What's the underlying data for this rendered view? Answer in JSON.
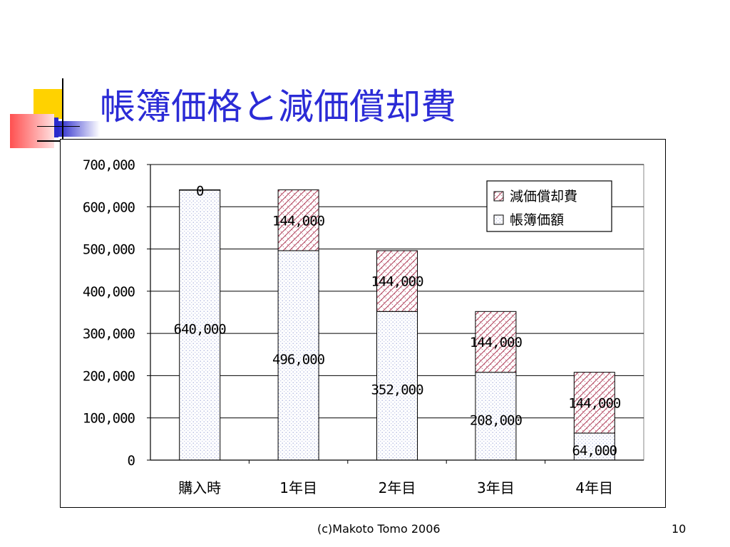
{
  "slide": {
    "title": "帳簿価格と減価償却費",
    "footer": "(c)Makoto Tomo 2006",
    "page_number": "10"
  },
  "colors": {
    "title": "#2b2bd6",
    "deco_yellow": "#ffd200",
    "deco_blue": "#2222cc",
    "deco_red": "#ff5a5a",
    "book_value_dots": "#9aa3d6",
    "depreciation_hatch": "#b0405a"
  },
  "chart_data": {
    "type": "bar",
    "stacked": true,
    "categories": [
      "購入時",
      "1年目",
      "2年目",
      "3年目",
      "4年目"
    ],
    "series": [
      {
        "name": "帳簿価額",
        "values": [
          640000,
          496000,
          352000,
          208000,
          64000
        ],
        "labels": [
          "640,000",
          "496,000",
          "352,000",
          "208,000",
          "64,000"
        ]
      },
      {
        "name": "減価償却費",
        "values": [
          0,
          144000,
          144000,
          144000,
          144000
        ],
        "labels": [
          "0",
          "144,000",
          "144,000",
          "144,000",
          "144,000"
        ]
      }
    ],
    "ylim": [
      0,
      700000
    ],
    "yticks": [
      "0",
      "100,000",
      "200,000",
      "300,000",
      "400,000",
      "500,000",
      "600,000",
      "700,000"
    ],
    "grid": true,
    "legend": {
      "position": "top-right",
      "entries": [
        "減価償却費",
        "帳簿価額"
      ]
    }
  }
}
